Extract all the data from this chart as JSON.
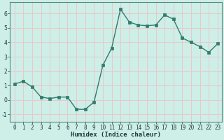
{
  "x": [
    0,
    1,
    2,
    3,
    4,
    5,
    6,
    7,
    8,
    9,
    10,
    11,
    12,
    13,
    14,
    15,
    16,
    17,
    18,
    19,
    20,
    21,
    22,
    23
  ],
  "y": [
    1.1,
    1.3,
    0.9,
    0.2,
    0.1,
    0.2,
    0.2,
    -0.65,
    -0.65,
    -0.15,
    2.4,
    3.6,
    6.3,
    5.4,
    5.2,
    5.15,
    5.2,
    5.9,
    5.6,
    4.3,
    4.0,
    3.7,
    3.3,
    3.9
  ],
  "line_color": "#2e7d6d",
  "marker": "s",
  "marker_size": 2.2,
  "bg_color": "#ceeee8",
  "grid_color_h": "#e8c8c8",
  "grid_color_v": "#e8c8c8",
  "xlabel": "Humidex (Indice chaleur)",
  "ylim": [
    -1.5,
    6.8
  ],
  "xlim": [
    -0.5,
    23.5
  ],
  "yticks": [
    -1,
    0,
    1,
    2,
    3,
    4,
    5,
    6
  ],
  "xticks": [
    0,
    1,
    2,
    3,
    4,
    5,
    6,
    7,
    8,
    9,
    10,
    11,
    12,
    13,
    14,
    15,
    16,
    17,
    18,
    19,
    20,
    21,
    22,
    23
  ],
  "tick_fontsize": 5.5,
  "xlabel_fontsize": 6.5,
  "linewidth": 1.0
}
